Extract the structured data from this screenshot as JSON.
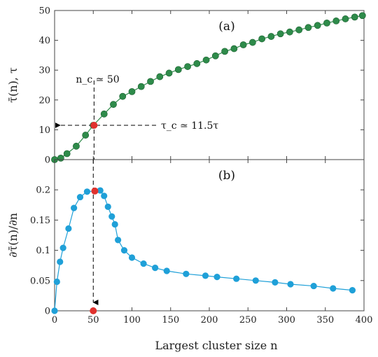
{
  "chart_data": [
    {
      "type": "scatter",
      "panel_label": "(a)",
      "ylabel": "τ̄(n), τ",
      "xlabel": "",
      "xlim": [
        0,
        400
      ],
      "ylim": [
        0,
        50
      ],
      "xticks": [
        0,
        50,
        100,
        150,
        200,
        250,
        300,
        350,
        400
      ],
      "yticks": [
        0,
        10,
        20,
        30,
        40,
        50
      ],
      "grid": false,
      "series_color": "#2e8b4a",
      "highlight_color": "#e0322e",
      "x": [
        0,
        8,
        16,
        28,
        40,
        50,
        64,
        76,
        88,
        100,
        112,
        124,
        136,
        148,
        160,
        172,
        184,
        196,
        208,
        220,
        232,
        244,
        256,
        268,
        280,
        292,
        304,
        316,
        328,
        340,
        352,
        364,
        376,
        388,
        398
      ],
      "y": [
        0,
        0.5,
        2,
        4.5,
        8.2,
        11.5,
        15.3,
        18.5,
        21.2,
        22.8,
        24.5,
        26.2,
        27.8,
        29.0,
        30.2,
        31.2,
        32.2,
        33.4,
        34.8,
        36.3,
        37.2,
        38.5,
        39.3,
        40.5,
        41.3,
        42.2,
        42.8,
        43.5,
        44.3,
        45.0,
        45.8,
        46.5,
        47.2,
        47.8,
        48.3
      ],
      "highlight_point": {
        "x": 51,
        "y": 11.5
      },
      "annotations": {
        "nc": "n_c ≃ 50",
        "tauc": "τ_c ≃ 11.5τ"
      }
    },
    {
      "type": "scatter",
      "panel_label": "(b)",
      "ylabel": "∂τ̄(n)/∂n",
      "xlabel": "Largest cluster size n",
      "xlim": [
        0,
        400
      ],
      "ylim": [
        0,
        0.25
      ],
      "xticks": [
        0,
        50,
        100,
        150,
        200,
        250,
        300,
        350,
        400
      ],
      "yticks": [
        0,
        0.05,
        0.1,
        0.15,
        0.2
      ],
      "grid": false,
      "series_color": "#1fa0d8",
      "highlight_color": "#e0322e",
      "x": [
        0,
        3,
        7,
        11,
        18,
        25,
        33,
        42,
        52,
        59,
        64,
        69,
        74,
        78,
        82,
        90,
        100,
        115,
        130,
        145,
        170,
        195,
        210,
        235,
        260,
        285,
        305,
        335,
        360,
        385
      ],
      "y": [
        0,
        0.048,
        0.081,
        0.104,
        0.136,
        0.17,
        0.188,
        0.197,
        0.198,
        0.199,
        0.19,
        0.172,
        0.156,
        0.143,
        0.117,
        0.1,
        0.088,
        0.078,
        0.071,
        0.066,
        0.061,
        0.058,
        0.056,
        0.053,
        0.05,
        0.047,
        0.044,
        0.041,
        0.037,
        0.034
      ],
      "highlight_points": [
        {
          "x": 52,
          "y": 0.198
        },
        {
          "x": 50,
          "y": 0
        }
      ]
    }
  ]
}
